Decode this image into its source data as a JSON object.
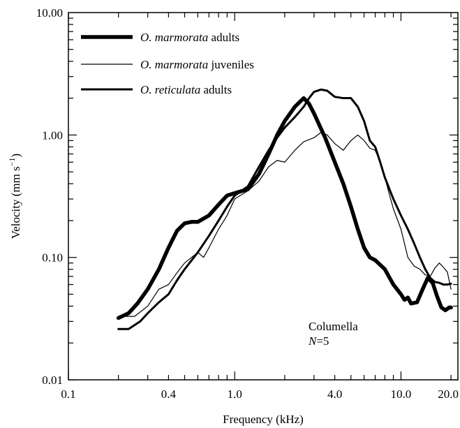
{
  "chart_data": {
    "type": "line",
    "xscale": "log",
    "yscale": "log",
    "xlabel": "Frequency (kHz)",
    "ylabel": "Velocity (mm s",
    "ylabel_sup": "−1",
    "ylabel_close": ")",
    "xlim": [
      0.1,
      22
    ],
    "ylim": [
      0.01,
      10
    ],
    "x_ticks": [
      {
        "value": 0.1,
        "label": "0.1"
      },
      {
        "value": 0.4,
        "label": "0.4"
      },
      {
        "value": 1.0,
        "label": "1.0"
      },
      {
        "value": 4.0,
        "label": "4.0"
      },
      {
        "value": 10.0,
        "label": "10.0"
      },
      {
        "value": 20.0,
        "label": "20.0"
      }
    ],
    "y_ticks": [
      {
        "value": 0.01,
        "label": "0.01"
      },
      {
        "value": 0.1,
        "label": "0.10"
      },
      {
        "value": 1.0,
        "label": "1.00"
      },
      {
        "value": 10.0,
        "label": "10.00"
      }
    ],
    "grid": false,
    "legend_position": "top-left",
    "annotation": {
      "line1": "Columella",
      "line2_italic": "N",
      "line2_rest": "=5"
    },
    "series": [
      {
        "name_italic": "O. marmorata",
        "name_rest": " adults",
        "style": "thick",
        "color": "#000000",
        "points": [
          [
            0.2,
            0.032
          ],
          [
            0.23,
            0.035
          ],
          [
            0.26,
            0.042
          ],
          [
            0.3,
            0.055
          ],
          [
            0.35,
            0.08
          ],
          [
            0.4,
            0.12
          ],
          [
            0.45,
            0.165
          ],
          [
            0.5,
            0.19
          ],
          [
            0.55,
            0.195
          ],
          [
            0.6,
            0.195
          ],
          [
            0.7,
            0.22
          ],
          [
            0.8,
            0.27
          ],
          [
            0.9,
            0.32
          ],
          [
            1.0,
            0.335
          ],
          [
            1.2,
            0.36
          ],
          [
            1.4,
            0.48
          ],
          [
            1.6,
            0.7
          ],
          [
            1.8,
            1.0
          ],
          [
            2.0,
            1.3
          ],
          [
            2.3,
            1.7
          ],
          [
            2.6,
            2.0
          ],
          [
            2.8,
            1.8
          ],
          [
            3.0,
            1.5
          ],
          [
            3.5,
            0.95
          ],
          [
            4.0,
            0.6
          ],
          [
            4.5,
            0.4
          ],
          [
            5.0,
            0.26
          ],
          [
            5.5,
            0.17
          ],
          [
            6.0,
            0.12
          ],
          [
            6.5,
            0.1
          ],
          [
            7.0,
            0.095
          ],
          [
            8.0,
            0.08
          ],
          [
            9.0,
            0.06
          ],
          [
            10.0,
            0.05
          ],
          [
            10.5,
            0.045
          ],
          [
            11.0,
            0.047
          ],
          [
            11.5,
            0.042
          ],
          [
            12.5,
            0.043
          ],
          [
            13.5,
            0.055
          ],
          [
            14.5,
            0.068
          ],
          [
            15.5,
            0.062
          ],
          [
            16.5,
            0.048
          ],
          [
            17.5,
            0.039
          ],
          [
            18.5,
            0.037
          ],
          [
            19.5,
            0.039
          ],
          [
            20.0,
            0.039
          ]
        ]
      },
      {
        "name_italic": "O. marmorata",
        "name_rest": " juveniles",
        "style": "thin",
        "color": "#000000",
        "points": [
          [
            0.2,
            0.033
          ],
          [
            0.25,
            0.033
          ],
          [
            0.3,
            0.04
          ],
          [
            0.35,
            0.055
          ],
          [
            0.4,
            0.06
          ],
          [
            0.45,
            0.075
          ],
          [
            0.5,
            0.09
          ],
          [
            0.55,
            0.1
          ],
          [
            0.6,
            0.11
          ],
          [
            0.65,
            0.1
          ],
          [
            0.7,
            0.12
          ],
          [
            0.8,
            0.17
          ],
          [
            0.9,
            0.22
          ],
          [
            1.0,
            0.3
          ],
          [
            1.2,
            0.35
          ],
          [
            1.4,
            0.42
          ],
          [
            1.6,
            0.55
          ],
          [
            1.8,
            0.62
          ],
          [
            2.0,
            0.6
          ],
          [
            2.3,
            0.75
          ],
          [
            2.6,
            0.88
          ],
          [
            3.0,
            0.95
          ],
          [
            3.3,
            1.05
          ],
          [
            3.6,
            1.0
          ],
          [
            4.0,
            0.85
          ],
          [
            4.5,
            0.75
          ],
          [
            5.0,
            0.9
          ],
          [
            5.5,
            1.0
          ],
          [
            6.0,
            0.9
          ],
          [
            6.5,
            0.78
          ],
          [
            7.0,
            0.75
          ],
          [
            7.5,
            0.6
          ],
          [
            8.0,
            0.45
          ],
          [
            8.5,
            0.33
          ],
          [
            9.0,
            0.25
          ],
          [
            10.0,
            0.17
          ],
          [
            11.0,
            0.1
          ],
          [
            12.0,
            0.085
          ],
          [
            13.0,
            0.08
          ],
          [
            14.0,
            0.072
          ],
          [
            15.0,
            0.07
          ],
          [
            16.0,
            0.082
          ],
          [
            17.0,
            0.09
          ],
          [
            18.0,
            0.083
          ],
          [
            19.0,
            0.076
          ],
          [
            20.0,
            0.055
          ]
        ]
      },
      {
        "name_italic": "O. reticulata",
        "name_rest": " adults",
        "style": "medium",
        "color": "#000000",
        "points": [
          [
            0.2,
            0.026
          ],
          [
            0.23,
            0.026
          ],
          [
            0.27,
            0.03
          ],
          [
            0.3,
            0.035
          ],
          [
            0.35,
            0.043
          ],
          [
            0.4,
            0.05
          ],
          [
            0.45,
            0.065
          ],
          [
            0.5,
            0.08
          ],
          [
            0.6,
            0.11
          ],
          [
            0.7,
            0.15
          ],
          [
            0.8,
            0.2
          ],
          [
            0.9,
            0.26
          ],
          [
            1.0,
            0.32
          ],
          [
            1.2,
            0.38
          ],
          [
            1.4,
            0.55
          ],
          [
            1.6,
            0.75
          ],
          [
            1.8,
            0.95
          ],
          [
            2.0,
            1.15
          ],
          [
            2.3,
            1.4
          ],
          [
            2.6,
            1.7
          ],
          [
            2.8,
            2.0
          ],
          [
            3.0,
            2.25
          ],
          [
            3.3,
            2.35
          ],
          [
            3.6,
            2.3
          ],
          [
            4.0,
            2.05
          ],
          [
            4.5,
            2.0
          ],
          [
            5.0,
            2.0
          ],
          [
            5.5,
            1.7
          ],
          [
            6.0,
            1.3
          ],
          [
            6.5,
            0.9
          ],
          [
            7.0,
            0.8
          ],
          [
            7.5,
            0.6
          ],
          [
            8.0,
            0.45
          ],
          [
            9.0,
            0.3
          ],
          [
            10.0,
            0.22
          ],
          [
            11.0,
            0.17
          ],
          [
            12.0,
            0.13
          ],
          [
            13.0,
            0.1
          ],
          [
            14.0,
            0.08
          ],
          [
            15.0,
            0.068
          ],
          [
            16.0,
            0.063
          ],
          [
            17.0,
            0.062
          ],
          [
            18.0,
            0.06
          ],
          [
            19.0,
            0.06
          ],
          [
            20.0,
            0.061
          ]
        ]
      }
    ]
  }
}
